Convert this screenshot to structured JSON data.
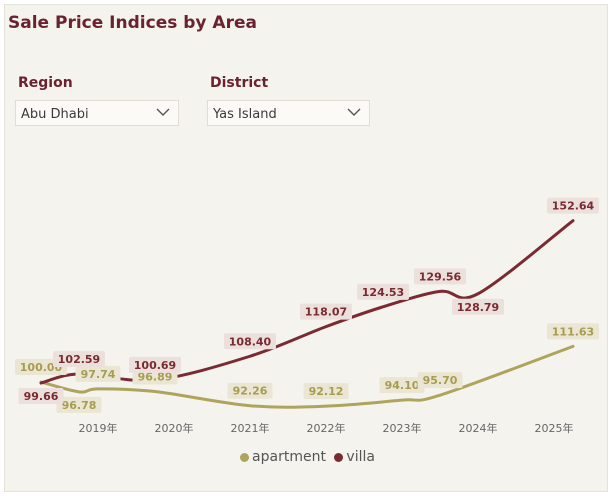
{
  "title": "Sale Price Indices by Area",
  "filters": {
    "region": {
      "label": "Region",
      "value": "Abu Dhabi"
    },
    "district": {
      "label": "District",
      "value": "Yas Island"
    }
  },
  "colors": {
    "apartment": "#aea45d",
    "villa": "#7a2a33"
  },
  "chart_data": {
    "type": "line",
    "x_ticks": [
      "2019年",
      "2020年",
      "2021年",
      "2022年",
      "2023年",
      "2024年",
      "2025年"
    ],
    "ylim": [
      90,
      160
    ],
    "legend_position": "bottom-center",
    "series": [
      {
        "name": "apartment",
        "points": [
          {
            "x": 2018.25,
            "y": 100.0
          },
          {
            "x": 2018.75,
            "y": 96.78
          },
          {
            "x": 2019.0,
            "y": 97.74
          },
          {
            "x": 2019.75,
            "y": 96.89
          },
          {
            "x": 2021.0,
            "y": 92.26
          },
          {
            "x": 2022.0,
            "y": 92.12
          },
          {
            "x": 2023.0,
            "y": 94.1
          },
          {
            "x": 2023.5,
            "y": 95.7
          },
          {
            "x": 2025.25,
            "y": 111.63
          }
        ],
        "labels": [
          "100.00",
          "96.78",
          "97.74",
          "96.89",
          "92.26",
          "92.12",
          "94.10",
          "95.70",
          "111.63"
        ]
      },
      {
        "name": "villa",
        "points": [
          {
            "x": 2018.25,
            "y": 99.66
          },
          {
            "x": 2018.75,
            "y": 102.59
          },
          {
            "x": 2019.75,
            "y": 100.69
          },
          {
            "x": 2021.0,
            "y": 108.4
          },
          {
            "x": 2022.0,
            "y": 118.07
          },
          {
            "x": 2022.75,
            "y": 124.53
          },
          {
            "x": 2023.5,
            "y": 129.56
          },
          {
            "x": 2024.0,
            "y": 128.79
          },
          {
            "x": 2025.25,
            "y": 152.64
          }
        ],
        "labels": [
          "99.66",
          "102.59",
          "100.69",
          "108.40",
          "118.07",
          "124.53",
          "129.56",
          "128.79",
          "152.64"
        ]
      }
    ]
  }
}
